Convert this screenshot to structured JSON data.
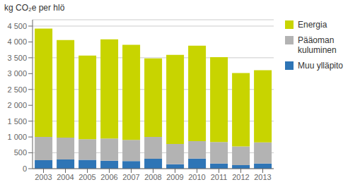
{
  "chart_data": {
    "type": "bar",
    "stacked": true,
    "ylabel": "kg CO₂e per hlö",
    "categories": [
      "2003",
      "2004",
      "2005",
      "2006",
      "2007",
      "2008",
      "2009",
      "2010",
      "2011",
      "2012",
      "2013"
    ],
    "series": [
      {
        "name": "Muu ylläpito",
        "color": "#2e75b6",
        "values": [
          270,
          290,
          280,
          250,
          240,
          310,
          140,
          320,
          160,
          110,
          160
        ]
      },
      {
        "name": "Pääoman\nkuluminen",
        "color": "#b3b3b3",
        "values": [
          730,
          690,
          650,
          700,
          670,
          690,
          640,
          550,
          680,
          590,
          670
        ]
      },
      {
        "name": "Energia",
        "color": "#c8d400",
        "values": [
          3420,
          3080,
          2640,
          3130,
          3000,
          2480,
          2810,
          3010,
          2680,
          2320,
          2280
        ]
      }
    ],
    "ylim": [
      0,
      4700
    ],
    "yticks": [
      0,
      500,
      {
        "value": 1000,
        "label": "1 000"
      },
      {
        "value": 1500,
        "label": "1 500"
      },
      {
        "value": 2000,
        "label": "2 000"
      },
      {
        "value": 2500,
        "label": "2 500"
      },
      {
        "value": 3000,
        "label": "3 000"
      },
      {
        "value": 3500,
        "label": "3 500"
      },
      {
        "value": 4000,
        "label": "4 000"
      },
      {
        "value": 4500,
        "label": "4 500"
      }
    ],
    "grid": true,
    "legend": "right"
  }
}
